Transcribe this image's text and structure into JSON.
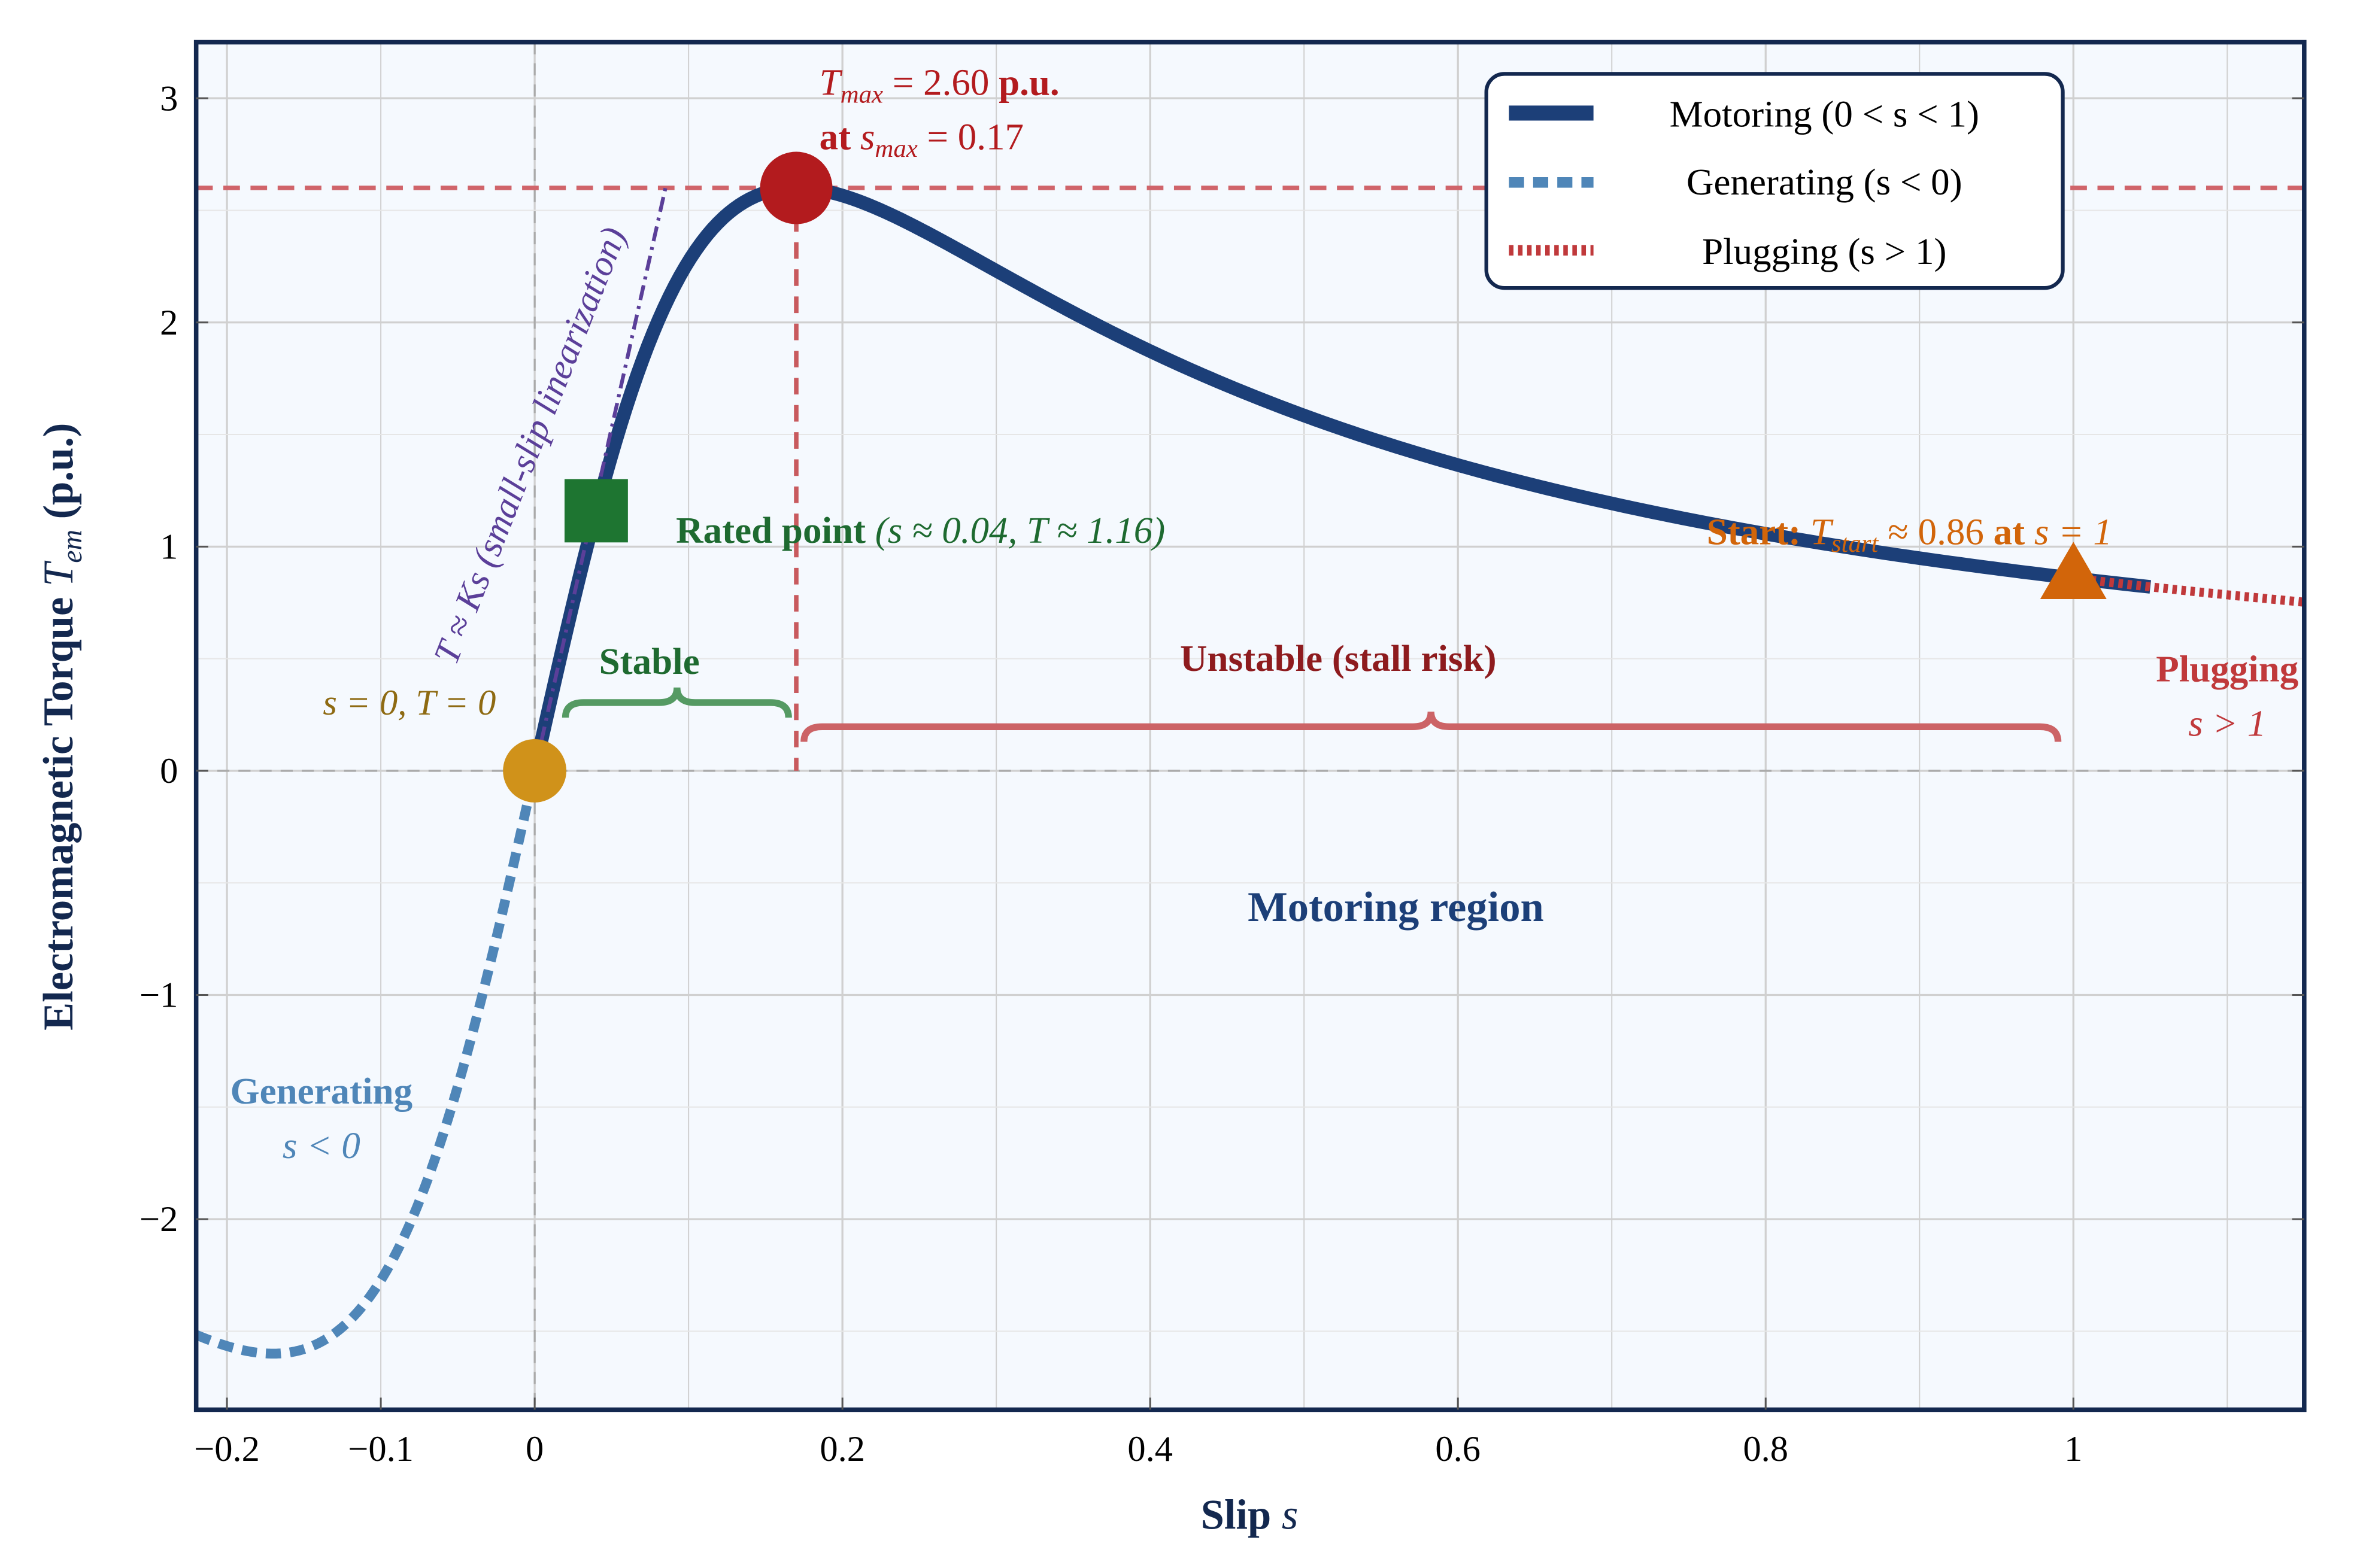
{
  "chart_data": {
    "type": "line",
    "xlabel": "Slip s",
    "ylabel": "Electromagnetic Torque T_em (p.u.)",
    "xlim": [
      -0.22,
      1.15
    ],
    "ylim": [
      -2.85,
      3.25
    ],
    "xticks": [
      -0.2,
      -0.1,
      0,
      0.2,
      0.4,
      0.6,
      0.8,
      1
    ],
    "xtick_labels": [
      "−0.2",
      "−0.1",
      "0",
      "0.2",
      "0.4",
      "0.6",
      "0.8",
      "1"
    ],
    "yticks": [
      -2,
      -1,
      0,
      1,
      2,
      3
    ],
    "ytick_labels": [
      "−2",
      "−1",
      "0",
      "1",
      "2",
      "3"
    ],
    "grid": true,
    "legend_placement": "top-right",
    "model": {
      "T_max": 2.6,
      "s_max": 0.17
    },
    "series": [
      {
        "name": "Motoring (0 < s < 1)",
        "style": "solid",
        "color": "#1c3f78",
        "s_range": [
          0,
          1.05
        ],
        "points": [
          [
            0,
            0
          ],
          [
            0.02,
            0.6
          ],
          [
            0.04,
            1.16
          ],
          [
            0.08,
            2.0
          ],
          [
            0.12,
            2.46
          ],
          [
            0.17,
            2.6
          ],
          [
            0.25,
            2.43
          ],
          [
            0.4,
            2.0
          ],
          [
            0.6,
            1.4
          ],
          [
            0.8,
            1.06
          ],
          [
            1.0,
            0.86
          ],
          [
            1.05,
            0.82
          ]
        ]
      },
      {
        "name": "Generating (s < 0)",
        "style": "dashed",
        "color": "#4f86b8",
        "s_range": [
          -0.22,
          0
        ],
        "points": [
          [
            -0.22,
            -2.53
          ],
          [
            -0.17,
            -2.6
          ],
          [
            -0.12,
            -2.46
          ],
          [
            -0.08,
            -2.0
          ],
          [
            -0.04,
            -1.16
          ],
          [
            0,
            0
          ]
        ]
      },
      {
        "name": "Plugging (s > 1)",
        "style": "dotted",
        "color": "#c0393b",
        "s_range": [
          1,
          1.15
        ],
        "points": [
          [
            1.0,
            0.86
          ],
          [
            1.15,
            0.75
          ]
        ]
      },
      {
        "style": "dashdot",
        "color": "#5b3f99",
        "s_range": [
          0,
          0.085
        ],
        "points": [
          [
            0,
            0
          ],
          [
            0.085,
            2.6
          ]
        ]
      }
    ],
    "markers": [
      {
        "s": 0.17,
        "T": 2.6,
        "shape": "circle",
        "color": "#b31b1e"
      },
      {
        "s": 0.04,
        "T": 1.16,
        "shape": "square",
        "color": "#1e7531"
      },
      {
        "s": 0,
        "T": 0,
        "shape": "circle",
        "color": "#d0921a"
      },
      {
        "s": 1,
        "T": 0.86,
        "shape": "triangle",
        "color": "#d2650a"
      }
    ],
    "reference_lines": [
      {
        "orientation": "horizontal",
        "value": 2.6,
        "color": "#d0646a"
      },
      {
        "orientation": "vertical",
        "value": 0.17,
        "color": "#c85a5e"
      }
    ],
    "annotations": {
      "tmax_line1_math": "T",
      "tmax_line1_sub": "max",
      "tmax_line1_rest": " = 2.60 ",
      "tmax_line1_bold": "p.u.",
      "tmax_line2_bold": "at ",
      "tmax_line2_math": "s",
      "tmax_line2_sub": "max",
      "tmax_line2_rest": " = 0.17",
      "linearization": "T ≈ Ks (small-slip linearization)",
      "rated_bold": "Rated point ",
      "rated_rest": "(s ≈ 0.04, T ≈ 1.16)",
      "origin": "s = 0, T = 0",
      "stable": "Stable",
      "unstable": "Unstable (stall risk)",
      "start_bold": "Start: ",
      "start_math": "T",
      "start_sub": "start",
      "start_rest": " ≈ 0.86 ",
      "start_bold2": "at ",
      "start_rest2": "s = 1",
      "plugging": "Plugging",
      "plugging_sub": "s > 1",
      "generating": "Generating",
      "generating_sub": "s < 0",
      "motoring_region": "Motoring region"
    },
    "labels": {
      "xlabel_bold": "Slip ",
      "xlabel_math": "s",
      "ylabel_bold": "Electromagnetic Torque ",
      "ylabel_math": "T",
      "ylabel_sub": "em",
      "ylabel_unit": " (p.u.)"
    },
    "colors": {
      "frame": "#13284f",
      "plot_bg": "#f5f9fe",
      "grid": "#d0d0d0"
    }
  }
}
